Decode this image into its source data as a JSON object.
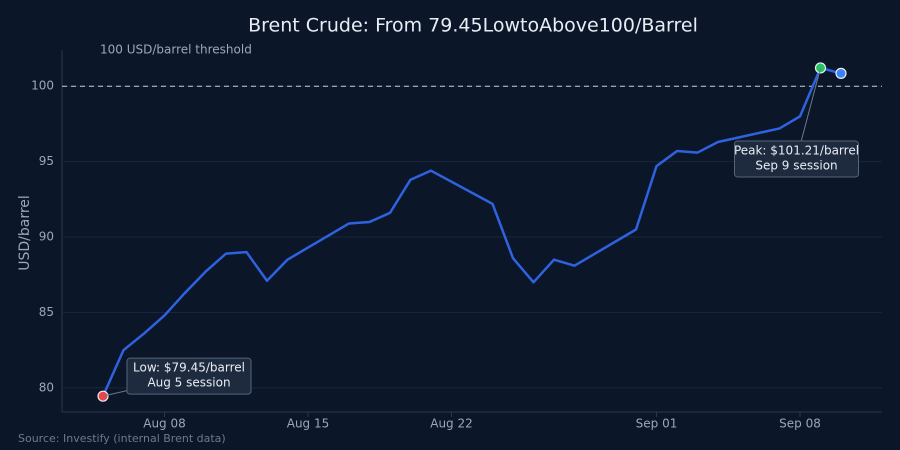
{
  "chart_data": {
    "type": "line",
    "title": "Brent Crude: From 79.45LowtoAbove100/Barrel",
    "y_label": "USD/barrel",
    "source": "Source: Investify (internal Brent data)",
    "x": [
      "Aug 05",
      "Aug 06",
      "Aug 07",
      "Aug 08",
      "Aug 09",
      "Aug 10",
      "Aug 11",
      "Aug 12",
      "Aug 13",
      "Aug 14",
      "Aug 15",
      "Aug 16",
      "Aug 17",
      "Aug 18",
      "Aug 19",
      "Aug 20",
      "Aug 21",
      "Aug 24",
      "Aug 25",
      "Aug 26",
      "Aug 27",
      "Aug 28",
      "Aug 31",
      "Sep 01",
      "Sep 02",
      "Sep 03",
      "Sep 04",
      "Sep 05",
      "Sep 06",
      "Sep 07",
      "Sep 08",
      "Sep 09",
      "Sep 10"
    ],
    "series": [
      {
        "name": "Brent",
        "color": "#2f62e0",
        "values": [
          79.45,
          82.5,
          83.6,
          84.8,
          86.3,
          87.7,
          88.9,
          89.0,
          87.1,
          88.5,
          89.3,
          90.1,
          90.9,
          91.0,
          91.6,
          93.8,
          94.4,
          92.2,
          88.6,
          87.0,
          88.5,
          88.1,
          90.5,
          94.7,
          95.7,
          95.6,
          96.3,
          96.6,
          96.9,
          97.2,
          98.0,
          101.21,
          100.85
        ]
      }
    ],
    "highlight": {
      "low_color": "#ef4444",
      "peak_color": "#22c55e",
      "last_color": "#3b82f6"
    },
    "annotations": [
      {
        "lines": [
          "Low: $79.45/barrel",
          "Aug 5 session"
        ],
        "x": "Aug 05",
        "y": 79.45
      },
      {
        "lines": [
          "Peak: $101.21/barrel",
          "Sep 9 session"
        ],
        "x": "Sep 09",
        "y": 101.21
      }
    ],
    "threshold": {
      "value": 100,
      "label": "100 USD/barrel threshold"
    },
    "xlim": [
      "Aug 03",
      "Sep 12"
    ],
    "xticks": [
      "Aug 08",
      "Aug 15",
      "Aug 22",
      "Sep 01",
      "Sep 08"
    ],
    "ylim": [
      78.4,
      102.4
    ],
    "yticks": [
      80,
      85,
      90,
      95,
      100
    ],
    "grid": true
  }
}
